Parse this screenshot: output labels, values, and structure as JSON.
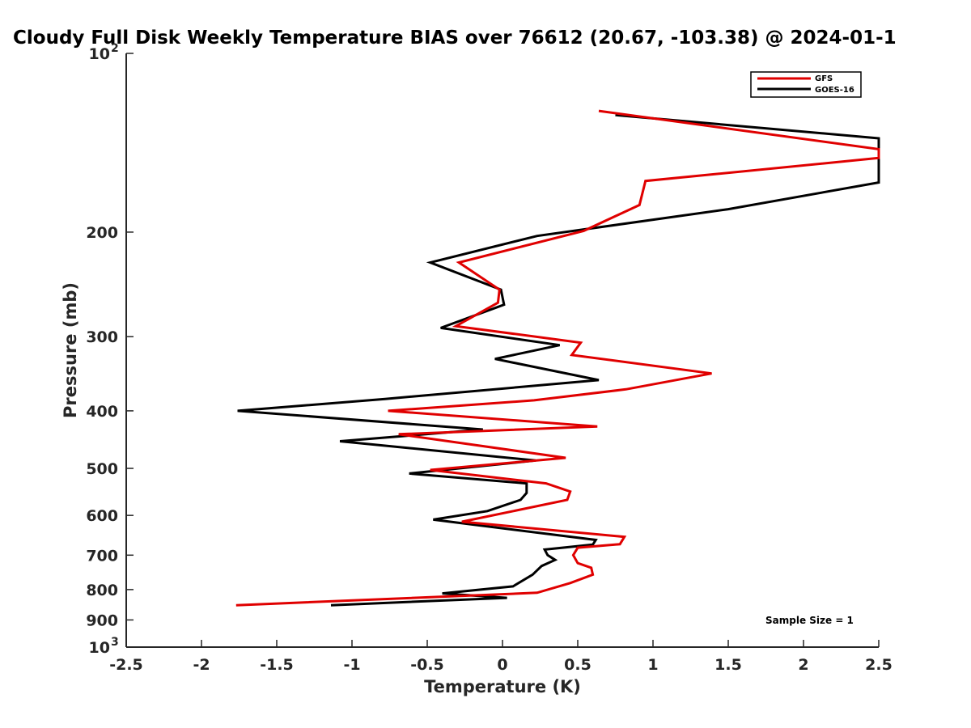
{
  "chart_data": {
    "type": "line",
    "title": "Cloudy Full Disk Weekly Temperature BIAS over 76612 (20.67, -103.38) @ 2024-01-1",
    "xlabel": "Temperature (K)",
    "ylabel": "Pressure (mb)",
    "xlim": [
      -2.5,
      2.5
    ],
    "ylim": [
      100,
      1000
    ],
    "yscale": "log",
    "y_reversed": true,
    "x_ticks": [
      "-2.5",
      "-2",
      "-1.5",
      "-1",
      "-0.5",
      "0",
      "0.5",
      "1",
      "1.5",
      "2",
      "2.5"
    ],
    "y_ticks": [
      {
        "value": 100,
        "label": "10",
        "exp": "2"
      },
      {
        "value": 200,
        "label": "200"
      },
      {
        "value": 300,
        "label": "300"
      },
      {
        "value": 400,
        "label": "400"
      },
      {
        "value": 500,
        "label": "500"
      },
      {
        "value": 600,
        "label": "600"
      },
      {
        "value": 700,
        "label": "700"
      },
      {
        "value": 800,
        "label": "800"
      },
      {
        "value": 900,
        "label": "900"
      },
      {
        "value": 1000,
        "label": "10",
        "exp": "3"
      }
    ],
    "grid": false,
    "legend_position": "top-right",
    "series": [
      {
        "name": "GFS",
        "color": "#e00000",
        "points": [
          [
            0.64,
            125
          ],
          [
            2.5,
            145
          ],
          [
            2.5,
            150
          ],
          [
            0.95,
            164
          ],
          [
            0.91,
            180
          ],
          [
            0.54,
            199
          ],
          [
            -0.29,
            225
          ],
          [
            -0.02,
            250
          ],
          [
            -0.03,
            263
          ],
          [
            -0.31,
            288
          ],
          [
            0.52,
            307
          ],
          [
            0.46,
            322
          ],
          [
            1.39,
            346
          ],
          [
            0.82,
            368
          ],
          [
            0.21,
            384
          ],
          [
            -0.76,
            400
          ],
          [
            0.63,
            425
          ],
          [
            -0.69,
            438
          ],
          [
            0.42,
            480
          ],
          [
            -0.48,
            503
          ],
          [
            0.29,
            530
          ],
          [
            0.45,
            547
          ],
          [
            0.43,
            565
          ],
          [
            -0.27,
            615
          ],
          [
            0.81,
            652
          ],
          [
            0.78,
            671
          ],
          [
            0.5,
            680
          ],
          [
            0.47,
            700
          ],
          [
            0.5,
            722
          ],
          [
            0.59,
            735
          ],
          [
            0.6,
            755
          ],
          [
            0.45,
            780
          ],
          [
            0.23,
            810
          ],
          [
            -1.77,
            850
          ]
        ]
      },
      {
        "name": "GOES-16",
        "color": "#000000",
        "points": [
          [
            0.75,
            127
          ],
          [
            2.5,
            139
          ],
          [
            2.5,
            165
          ],
          [
            1.5,
            183
          ],
          [
            0.23,
            203
          ],
          [
            -0.48,
            225
          ],
          [
            -0.01,
            250
          ],
          [
            0.01,
            265
          ],
          [
            -0.41,
            290
          ],
          [
            0.38,
            310
          ],
          [
            -0.05,
            327
          ],
          [
            0.64,
            355
          ],
          [
            -0.78,
            382
          ],
          [
            -1.76,
            400
          ],
          [
            -0.13,
            430
          ],
          [
            -1.08,
            450
          ],
          [
            0.22,
            485
          ],
          [
            -0.62,
            510
          ],
          [
            0.16,
            530
          ],
          [
            0.16,
            550
          ],
          [
            0.12,
            565
          ],
          [
            -0.1,
            590
          ],
          [
            -0.46,
            610
          ],
          [
            0.62,
            660
          ],
          [
            0.6,
            672
          ],
          [
            0.28,
            685
          ],
          [
            0.3,
            700
          ],
          [
            0.35,
            713
          ],
          [
            0.26,
            730
          ],
          [
            0.2,
            755
          ],
          [
            0.07,
            790
          ],
          [
            -0.4,
            812
          ],
          [
            0.03,
            826
          ],
          [
            -1.14,
            850
          ]
        ]
      }
    ],
    "annotations": [
      "Sample Size = 1"
    ]
  }
}
